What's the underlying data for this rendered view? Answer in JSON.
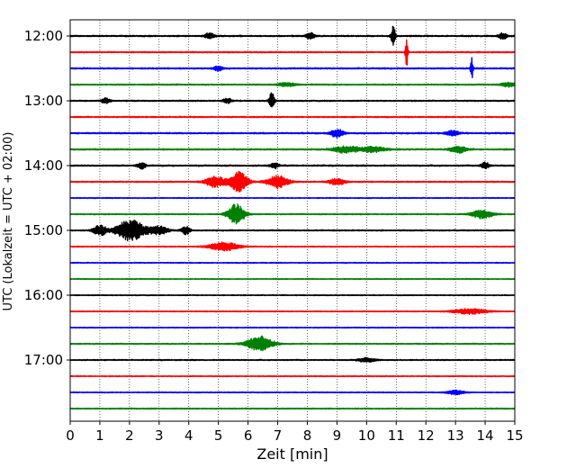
{
  "chart_data": {
    "type": "line",
    "title": "",
    "xlabel": "Zeit  [min]",
    "ylabel": "UTC (Lokalzeit = UTC + 02:00)",
    "xlim": [
      0,
      15
    ],
    "x_ticks": [
      0,
      1,
      2,
      3,
      4,
      5,
      6,
      7,
      8,
      9,
      10,
      11,
      12,
      13,
      14,
      15
    ],
    "x_tick_labels": [
      "0",
      "1",
      "2",
      "3",
      "4",
      "5",
      "6",
      "7",
      "8",
      "9",
      "10",
      "11",
      "12",
      "13",
      "14",
      "15"
    ],
    "y_tick_labels": [
      "12:00",
      "13:00",
      "14:00",
      "15:00",
      "16:00",
      "17:00"
    ],
    "y_tick_trace_index": [
      0,
      4,
      8,
      12,
      16,
      20
    ],
    "grid": "vertical dotted",
    "colors": [
      "#000000",
      "#ff0000",
      "#0000ff",
      "#008000"
    ],
    "trace_start_minutes": [
      720,
      735,
      750,
      765,
      780,
      795,
      810,
      825,
      840,
      855,
      870,
      885,
      900,
      915,
      930,
      945,
      960,
      975,
      990,
      1005,
      1020,
      1035,
      1050,
      1065
    ],
    "trace_noise_level": [
      0.45,
      0.4,
      0.45,
      0.4,
      0.4,
      0.4,
      0.45,
      0.45,
      0.45,
      0.4,
      0.3,
      0.35,
      0.4,
      0.3,
      0.3,
      0.3,
      0.3,
      0.3,
      0.3,
      0.35,
      0.35,
      0.3,
      0.3,
      0.35
    ],
    "events": [
      {
        "trace": 0,
        "minute": 10.9,
        "amplitude": 9,
        "duration": 0.05
      },
      {
        "trace": 0,
        "minute": 4.7,
        "amplitude": 3,
        "duration": 0.1
      },
      {
        "trace": 0,
        "minute": 8.1,
        "amplitude": 3,
        "duration": 0.1
      },
      {
        "trace": 0,
        "minute": 14.6,
        "amplitude": 3,
        "duration": 0.1
      },
      {
        "trace": 1,
        "minute": 11.35,
        "amplitude": 14,
        "duration": 0.03
      },
      {
        "trace": 2,
        "minute": 13.55,
        "amplitude": 10,
        "duration": 0.03
      },
      {
        "trace": 2,
        "minute": 5.0,
        "amplitude": 2.5,
        "duration": 0.1
      },
      {
        "trace": 3,
        "minute": 7.3,
        "amplitude": 2,
        "duration": 0.2
      },
      {
        "trace": 3,
        "minute": 14.8,
        "amplitude": 2,
        "duration": 0.2
      },
      {
        "trace": 4,
        "minute": 6.8,
        "amplitude": 8,
        "duration": 0.06
      },
      {
        "trace": 4,
        "minute": 1.2,
        "amplitude": 2.5,
        "duration": 0.1
      },
      {
        "trace": 4,
        "minute": 5.3,
        "amplitude": 2.5,
        "duration": 0.1
      },
      {
        "trace": 6,
        "minute": 9.0,
        "amplitude": 4,
        "duration": 0.15
      },
      {
        "trace": 6,
        "minute": 12.9,
        "amplitude": 2.5,
        "duration": 0.15
      },
      {
        "trace": 7,
        "minute": 9.3,
        "amplitude": 3,
        "duration": 0.3
      },
      {
        "trace": 7,
        "minute": 10.2,
        "amplitude": 2.5,
        "duration": 0.3
      },
      {
        "trace": 7,
        "minute": 13.1,
        "amplitude": 3,
        "duration": 0.2
      },
      {
        "trace": 8,
        "minute": 2.4,
        "amplitude": 3,
        "duration": 0.1
      },
      {
        "trace": 8,
        "minute": 6.9,
        "amplitude": 2.5,
        "duration": 0.1
      },
      {
        "trace": 8,
        "minute": 14.0,
        "amplitude": 3,
        "duration": 0.1
      },
      {
        "trace": 9,
        "minute": 4.9,
        "amplitude": 5,
        "duration": 0.25
      },
      {
        "trace": 9,
        "minute": 5.7,
        "amplitude": 10,
        "duration": 0.2
      },
      {
        "trace": 9,
        "minute": 7.0,
        "amplitude": 6,
        "duration": 0.25
      },
      {
        "trace": 9,
        "minute": 9.0,
        "amplitude": 3,
        "duration": 0.2
      },
      {
        "trace": 11,
        "minute": 5.6,
        "amplitude": 10,
        "duration": 0.2
      },
      {
        "trace": 11,
        "minute": 13.9,
        "amplitude": 4,
        "duration": 0.25
      },
      {
        "trace": 12,
        "minute": 1.0,
        "amplitude": 5,
        "duration": 0.15
      },
      {
        "trace": 12,
        "minute": 2.05,
        "amplitude": 10,
        "duration": 0.35
      },
      {
        "trace": 12,
        "minute": 3.0,
        "amplitude": 4,
        "duration": 0.2
      },
      {
        "trace": 12,
        "minute": 3.9,
        "amplitude": 4,
        "duration": 0.1
      },
      {
        "trace": 13,
        "minute": 5.2,
        "amplitude": 4,
        "duration": 0.35
      },
      {
        "trace": 17,
        "minute": 13.5,
        "amplitude": 2.5,
        "duration": 0.4
      },
      {
        "trace": 19,
        "minute": 6.4,
        "amplitude": 7,
        "duration": 0.3
      },
      {
        "trace": 20,
        "minute": 10.0,
        "amplitude": 2,
        "duration": 0.2
      },
      {
        "trace": 22,
        "minute": 13.0,
        "amplitude": 2,
        "duration": 0.2
      }
    ]
  }
}
